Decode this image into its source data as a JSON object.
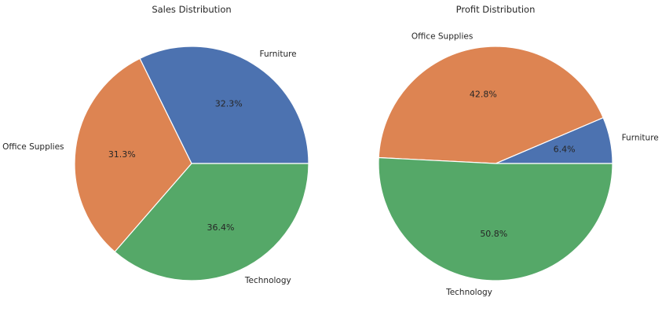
{
  "chart_data": [
    {
      "type": "pie",
      "title": "Sales Distribution",
      "categories": [
        "Furniture",
        "Office Supplies",
        "Technology"
      ],
      "values": [
        32.3,
        31.3,
        36.4
      ],
      "value_labels": [
        "32.3%",
        "31.3%",
        "36.4%"
      ],
      "colors": [
        "#4c72b0",
        "#dd8452",
        "#55a868"
      ],
      "start_angle_deg": 0,
      "direction": "counterclockwise",
      "legend": "none"
    },
    {
      "type": "pie",
      "title": "Profit Distribution",
      "categories": [
        "Furniture",
        "Office Supplies",
        "Technology"
      ],
      "values": [
        6.4,
        42.8,
        50.8
      ],
      "value_labels": [
        "6.4%",
        "42.8%",
        "50.8%"
      ],
      "colors": [
        "#4c72b0",
        "#dd8452",
        "#55a868"
      ],
      "start_angle_deg": 0,
      "direction": "counterclockwise",
      "legend": "none"
    }
  ]
}
